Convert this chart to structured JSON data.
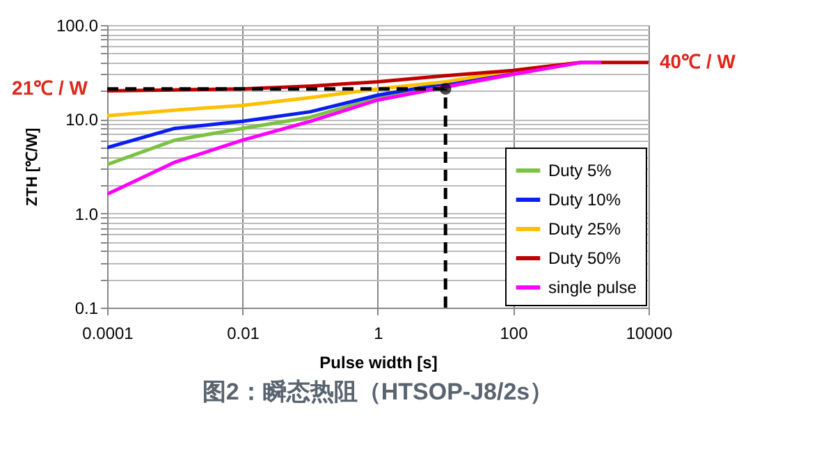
{
  "chart_data": {
    "type": "line",
    "title": "图2：瞬态热阻（HTSOP-J8/2s）",
    "xlabel": "Pulse width [s]",
    "ylabel": "ZTH [℃/W]",
    "log": "xy",
    "grid": true,
    "legend": "bottom right",
    "marker": "none",
    "line_style": "solid",
    "xlim": [
      0.0001,
      10000
    ],
    "ylim": [
      0.1,
      100
    ],
    "xticks": [
      0.0001,
      0.01,
      1,
      100,
      10000
    ],
    "yticks": [
      {
        "value": 0.1,
        "label": "0.1"
      },
      {
        "value": 0.2,
        "label": null
      },
      {
        "value": 0.3,
        "label": null
      },
      {
        "value": 0.4,
        "label": null
      },
      {
        "value": 0.5,
        "label": null
      },
      {
        "value": 0.6,
        "label": null
      },
      {
        "value": 0.7,
        "label": null
      },
      {
        "value": 0.8,
        "label": null
      },
      {
        "value": 0.9,
        "label": null
      },
      {
        "value": 1,
        "label": "1.0"
      },
      {
        "value": 2,
        "label": null
      },
      {
        "value": 3,
        "label": null
      },
      {
        "value": 4,
        "label": null
      },
      {
        "value": 5,
        "label": null
      },
      {
        "value": 6,
        "label": null
      },
      {
        "value": 7,
        "label": null
      },
      {
        "value": 8,
        "label": null
      },
      {
        "value": 9,
        "label": null
      },
      {
        "value": 10,
        "label": "10.0"
      },
      {
        "value": 20,
        "label": null
      },
      {
        "value": 30,
        "label": null
      },
      {
        "value": 40,
        "label": null
      },
      {
        "value": 50,
        "label": null
      },
      {
        "value": 60,
        "label": null
      },
      {
        "value": 70,
        "label": null
      },
      {
        "value": 80,
        "label": null
      },
      {
        "value": 90,
        "label": null
      },
      {
        "value": 100,
        "label": "100.0"
      }
    ],
    "x": [
      0.0001,
      0.001,
      0.01,
      0.1,
      1,
      10,
      100,
      1000,
      2000
    ],
    "series": [
      {
        "name": "Duty 5%",
        "color": "#7cc242",
        "values": [
          3.3,
          6,
          8,
          10.5,
          17,
          23,
          31,
          null,
          null
        ]
      },
      {
        "name": "Duty 10%",
        "color": "#0a1ef0",
        "values": [
          5,
          8,
          9.5,
          12,
          18,
          24,
          32,
          null,
          null
        ]
      },
      {
        "name": "Duty 25%",
        "color": "#ffc000",
        "values": [
          10.9,
          12.5,
          14,
          17,
          21,
          25,
          33,
          40,
          null
        ]
      },
      {
        "name": "Duty 50%",
        "color": "#c00000",
        "x": [
          0.0001,
          0.001,
          0.01,
          0.1,
          1,
          10,
          100,
          1000,
          10000
        ],
        "values": [
          20,
          20.5,
          21,
          22.5,
          25,
          29,
          33,
          40,
          40
        ]
      },
      {
        "name": "single pulse",
        "color": "#ff00ff",
        "values": [
          1.6,
          3.5,
          6,
          9.5,
          16,
          22,
          30,
          40,
          40
        ]
      },
      {
        "type": "line",
        "color": "#000000",
        "line_style": "dashed",
        "x": [
          0.0001,
          10
        ],
        "values": [
          21,
          21
        ]
      },
      {
        "type": "line",
        "color": "#000000",
        "line_style": "dashed",
        "x": [
          10,
          10
        ],
        "values": [
          0.1,
          21
        ]
      },
      {
        "type": "scatter",
        "color": "#000000",
        "marker": "circle",
        "x": [
          10
        ],
        "values": [
          21
        ]
      }
    ],
    "annotations": [
      {
        "text": "21℃ / W",
        "x": 0.0001,
        "y": 21
      },
      {
        "text": "40℃ / W",
        "x": 10000,
        "y": 40
      }
    ]
  }
}
